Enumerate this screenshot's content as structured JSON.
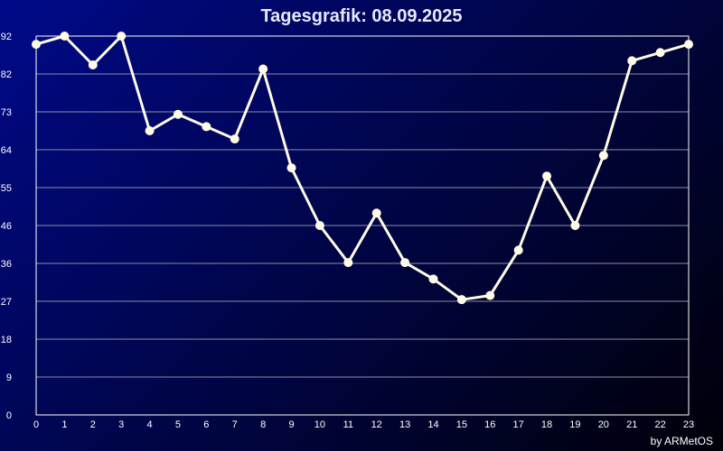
{
  "chart_data": {
    "type": "line",
    "title": "Tagesgrafik: 08.09.2025",
    "credit": "by ARMetOS",
    "xlabel": "",
    "ylabel": "",
    "x": [
      0,
      1,
      2,
      3,
      4,
      5,
      6,
      7,
      8,
      9,
      10,
      11,
      12,
      13,
      14,
      15,
      16,
      17,
      18,
      19,
      20,
      21,
      22,
      23
    ],
    "x_tick_labels": [
      "0",
      "1",
      "2",
      "3",
      "4",
      "5",
      "6",
      "7",
      "8",
      "9",
      "10",
      "11",
      "12",
      "13",
      "14",
      "15",
      "16",
      "17",
      "18",
      "19",
      "20",
      "21",
      "22",
      "23"
    ],
    "y_tick_labels": [
      "0",
      "9",
      "18",
      "27",
      "36",
      "46",
      "55",
      "64",
      "73",
      "82",
      "92"
    ],
    "ylim": [
      0,
      92
    ],
    "grid": true,
    "series": [
      {
        "values": [
          90,
          92,
          85,
          92,
          69,
          73,
          70,
          67,
          84,
          60,
          46,
          37,
          49,
          37,
          33,
          28,
          29,
          40,
          58,
          46,
          63,
          86,
          88,
          90
        ],
        "color": "#fffbe6"
      }
    ],
    "colors": {
      "grid": "#8c8ca8",
      "axis": "#ffffff",
      "line": "#fffbe6"
    }
  }
}
